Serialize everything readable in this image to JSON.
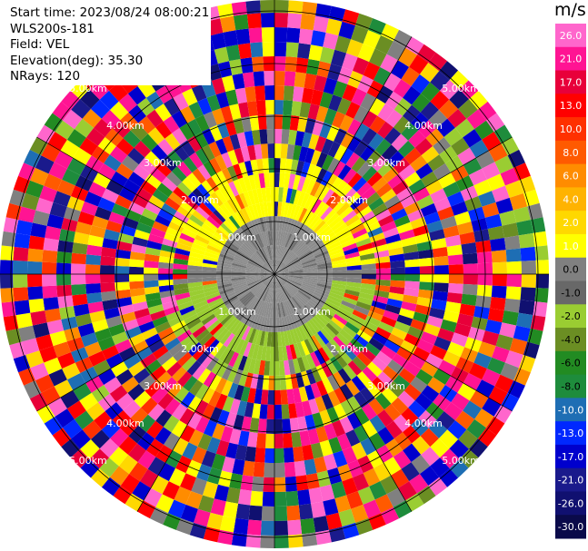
{
  "header": {
    "start_time_label": "Start time:",
    "start_time": "2023/08/24 08:00:21",
    "instrument": "WLS200s-181",
    "field_label": "Field:",
    "field": "VEL",
    "elevation_label": "Elevation(deg):",
    "elevation": "35.30",
    "nrays_label": "NRays:",
    "nrays": "120"
  },
  "colorbar": {
    "unit": "m/s",
    "ticks": [
      "26.0",
      "21.0",
      "17.0",
      "13.0",
      "10.0",
      "8.0",
      "6.0",
      "4.0",
      "2.0",
      "1.0",
      "0.0",
      "-1.0",
      "-2.0",
      "-4.0",
      "-6.0",
      "-8.0",
      "-10.0",
      "-13.0",
      "-17.0",
      "-21.0",
      "-26.0",
      "-30.0"
    ],
    "colors": [
      "#ff66cc",
      "#ff1493",
      "#e8003a",
      "#ff0000",
      "#ff3000",
      "#ff5a00",
      "#ff8c00",
      "#ffb300",
      "#ffd800",
      "#ffff00",
      "#808080",
      "#686868",
      "#9acd32",
      "#6b8e23",
      "#228b22",
      "#1e8c3c",
      "#1e6eb4",
      "#0028ff",
      "#0000cd",
      "#1a1a8c",
      "#101070",
      "#0a0a4a"
    ]
  },
  "chart_data": {
    "type": "heatmap",
    "projection": "polar PPI",
    "field": "VEL",
    "units": "m/s",
    "nrays": 120,
    "range_rings_km": [
      "1.00km",
      "2.00km",
      "3.00km",
      "4.00km",
      "5.00km"
    ],
    "color_range": [
      -30.0,
      26.0
    ],
    "inner_pattern": {
      "north_near_range": "yellow (approx +2 m/s)",
      "south_near_range": "olive green (approx -2 m/s)",
      "center_ring": "grey (approx 0 m/s)"
    },
    "outer_pattern": "noise across all colors beyond ~2 km"
  }
}
